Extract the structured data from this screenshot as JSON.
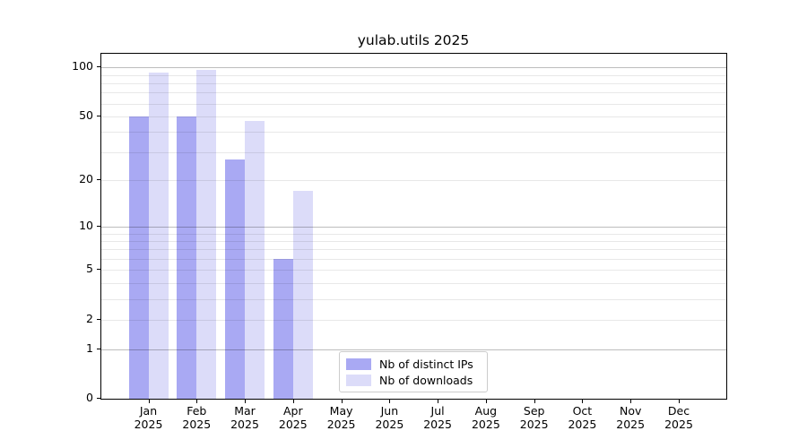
{
  "chart_data": {
    "type": "bar",
    "title": "yulab.utils 2025",
    "categories": [
      "Jan",
      "Feb",
      "Mar",
      "Apr",
      "May",
      "Jun",
      "Jul",
      "Aug",
      "Sep",
      "Oct",
      "Nov",
      "Dec"
    ],
    "x_tick_year": "2025",
    "series": [
      {
        "name": "Nb of distinct IPs",
        "color": "#a9a9f3",
        "values": [
          50,
          50,
          27,
          6,
          null,
          null,
          null,
          null,
          null,
          null,
          null,
          null
        ]
      },
      {
        "name": "Nb of downloads",
        "color": "#dcdcf9",
        "values": [
          93,
          97,
          47,
          17,
          null,
          null,
          null,
          null,
          null,
          null,
          null,
          null
        ]
      }
    ],
    "y_ticks": [
      0,
      1,
      2,
      5,
      10,
      20,
      50,
      100
    ],
    "y_scale": "log1p",
    "ylim": [
      0,
      121
    ],
    "xlabel": "",
    "ylabel": "",
    "grid": "horizontal, log major at 1/10/100, log minors",
    "legend_position": "bottom-center-inside"
  }
}
